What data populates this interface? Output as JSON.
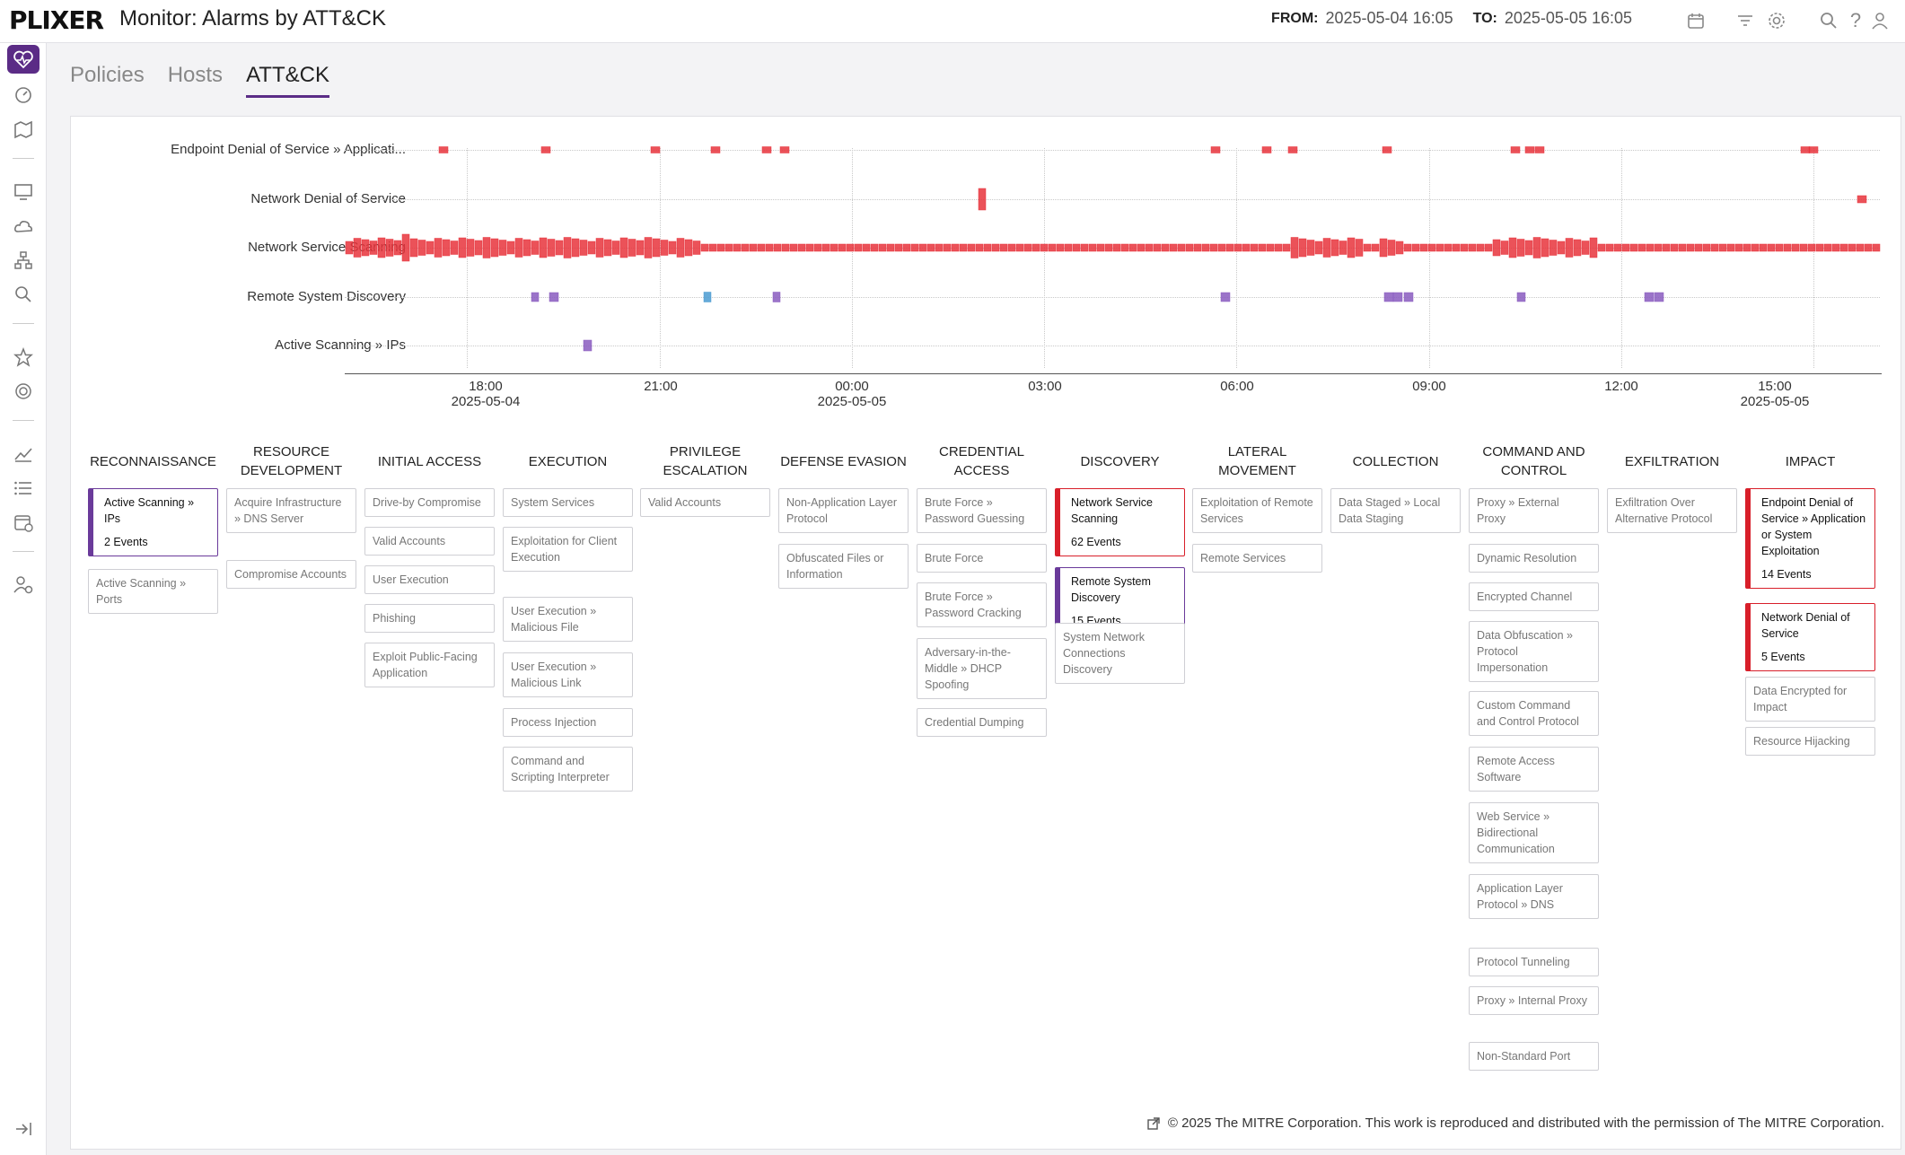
{
  "header": {
    "logo": "PLIXER",
    "title": "Monitor: Alarms by ATT&CK",
    "from_label": "FROM:",
    "from_value": "2025-05-04 16:05",
    "to_label": "TO:",
    "to_value": "2025-05-05 16:05"
  },
  "tabs": [
    "Policies",
    "Hosts",
    "ATT&CK"
  ],
  "active_tab": "ATT&CK",
  "timeline": {
    "rows": [
      "Endpoint Denial of Service » Applicati...",
      "Network Denial of Service",
      "Network Service Scanning",
      "Remote System Discovery",
      "Active Scanning » IPs"
    ],
    "ticks": [
      {
        "time": "18:00",
        "date": "2025-05-04"
      },
      {
        "time": "21:00",
        "date": ""
      },
      {
        "time": "00:00",
        "date": "2025-05-05"
      },
      {
        "time": "03:00",
        "date": ""
      },
      {
        "time": "06:00",
        "date": ""
      },
      {
        "time": "09:00",
        "date": ""
      },
      {
        "time": "12:00",
        "date": ""
      },
      {
        "time": "15:00",
        "date": "2025-05-05"
      }
    ],
    "colors": {
      "red": "#e8343c",
      "purple": "#8a5cc0",
      "blue": "#4a9bd1"
    }
  },
  "matrix": [
    {
      "head": "RECONNAISSANCE",
      "cards": [
        {
          "text": "Active Scanning » IPs",
          "count": "2 Events",
          "hit": "purple"
        },
        {
          "text": "Active Scanning » Ports"
        }
      ]
    },
    {
      "head": "RESOURCE DEVELOPMENT",
      "cards": [
        {
          "text": "Acquire Infrastructure » DNS Server"
        },
        {
          "text": "Compromise Accounts"
        }
      ]
    },
    {
      "head": "INITIAL ACCESS",
      "cards": [
        {
          "text": "Drive-by Compromise"
        },
        {
          "text": "Valid Accounts"
        },
        {
          "text": "User Execution"
        },
        {
          "text": "Phishing"
        },
        {
          "text": "Exploit Public-Facing Application"
        }
      ]
    },
    {
      "head": "EXECUTION",
      "cards": [
        {
          "text": "System Services"
        },
        {
          "text": "Exploitation for Client Execution"
        },
        {
          "text": "User Execution » Malicious File"
        },
        {
          "text": "User Execution » Malicious Link"
        },
        {
          "text": "Process Injection"
        },
        {
          "text": "Command and Scripting Interpreter"
        }
      ]
    },
    {
      "head": "PRIVILEGE ESCALATION",
      "cards": [
        {
          "text": "Valid Accounts"
        }
      ]
    },
    {
      "head": "DEFENSE EVASION",
      "cards": [
        {
          "text": "Non-Application Layer Protocol"
        },
        {
          "text": "Obfuscated Files or Information"
        }
      ]
    },
    {
      "head": "CREDENTIAL ACCESS",
      "cards": [
        {
          "text": "Brute Force » Password Guessing"
        },
        {
          "text": "Brute Force"
        },
        {
          "text": "Brute Force » Password Cracking"
        },
        {
          "text": "Adversary-in-the-Middle » DHCP Spoofing"
        },
        {
          "text": "Credential Dumping"
        }
      ]
    },
    {
      "head": "DISCOVERY",
      "cards": [
        {
          "text": "Network Service Scanning",
          "count": "62 Events",
          "hit": "red"
        },
        {
          "text": "Remote System Discovery",
          "count": "15 Events",
          "hit": "purple"
        },
        {
          "text": "System Network Connections Discovery"
        }
      ]
    },
    {
      "head": "LATERAL MOVEMENT",
      "cards": [
        {
          "text": "Exploitation of Remote Services"
        },
        {
          "text": "Remote Services"
        }
      ]
    },
    {
      "head": "COLLECTION",
      "cards": [
        {
          "text": "Data Staged » Local Data Staging"
        }
      ]
    },
    {
      "head": "COMMAND AND CONTROL",
      "cards": [
        {
          "text": "Proxy » External Proxy"
        },
        {
          "text": "Dynamic Resolution"
        },
        {
          "text": "Encrypted Channel"
        },
        {
          "text": "Data Obfuscation » Protocol Impersonation"
        },
        {
          "text": "Custom Command and Control Protocol"
        },
        {
          "text": "Remote Access Software"
        },
        {
          "text": "Web Service » Bidirectional Communication"
        },
        {
          "text": "Application Layer Protocol » DNS"
        },
        {
          "text": "Protocol Tunneling"
        },
        {
          "text": "Proxy » Internal Proxy"
        },
        {
          "text": "Non-Standard Port"
        }
      ]
    },
    {
      "head": "EXFILTRATION",
      "cards": [
        {
          "text": "Exfiltration Over Alternative Protocol"
        }
      ]
    },
    {
      "head": "IMPACT",
      "cards": [
        {
          "text": "Endpoint Denial of Service » Application or System Exploitation",
          "count": "14 Events",
          "hit": "red"
        },
        {
          "text": "Network Denial of Service",
          "count": "5 Events",
          "hit": "red"
        },
        {
          "text": "Data Encrypted for Impact"
        },
        {
          "text": "Resource Hijacking"
        }
      ]
    }
  ],
  "footer": "© 2025 The MITRE Corporation. This work is reproduced and distributed with the permission of The MITRE Corporation."
}
